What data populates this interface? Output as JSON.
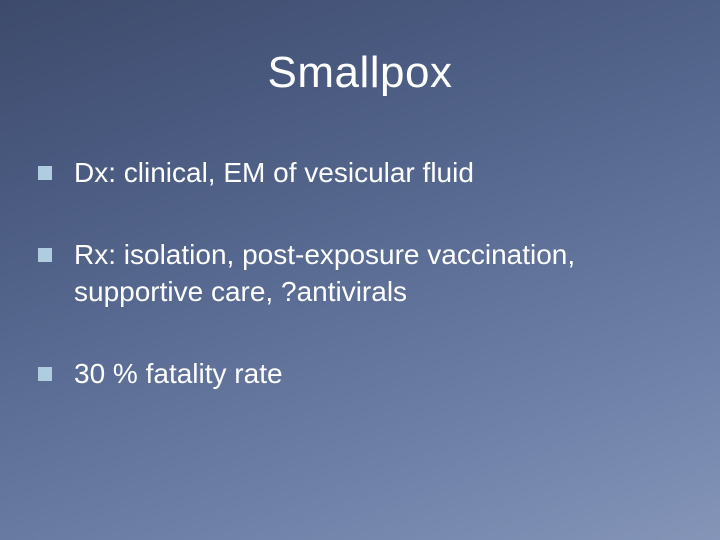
{
  "slide": {
    "title": "Smallpox",
    "title_fontsize": 44,
    "background_gradient": [
      "#3d4a6b",
      "#4a5a80",
      "#5b6d95",
      "#6e80a8",
      "#8495b8"
    ],
    "text_color": "#ffffff",
    "bullet_marker_color": "#b0cde0",
    "bullet_marker_size": 14,
    "bullet_fontsize": 28,
    "bullets": [
      {
        "text": "Dx: clinical, EM of vesicular fluid"
      },
      {
        "text": "Rx: isolation, post-exposure vaccination, supportive care, ?antivirals"
      },
      {
        "text": "30 % fatality rate"
      }
    ]
  }
}
